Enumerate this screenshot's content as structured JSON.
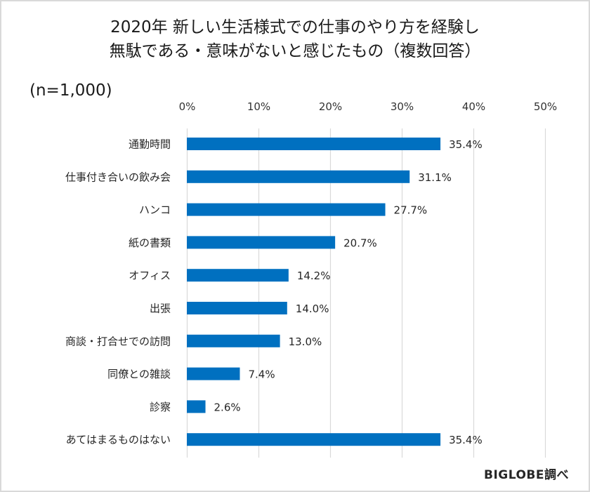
{
  "chart_data": {
    "type": "bar",
    "orientation": "horizontal",
    "title_lines": [
      "2020年 新しい生活様式での仕事のやり方を経験し",
      "無駄である・意味がないと感じたもの（複数回答）"
    ],
    "sample_note": "(n=1,000)",
    "source": "BIGLOBE調べ",
    "categories": [
      "通勤時間",
      "仕事付き合いの飲み会",
      "ハンコ",
      "紙の書類",
      "オフィス",
      "出張",
      "商談・打合せでの訪問",
      "同僚との雑談",
      "診察",
      "あてはまるものはない"
    ],
    "values": [
      35.4,
      31.1,
      27.7,
      20.7,
      14.2,
      14.0,
      13.0,
      7.4,
      2.6,
      35.4
    ],
    "value_labels": [
      "35.4%",
      "31.1%",
      "27.7%",
      "20.7%",
      "14.2%",
      "14.0%",
      "13.0%",
      "7.4%",
      "2.6%",
      "35.4%"
    ],
    "xlim": [
      0,
      50
    ],
    "x_ticks": [
      0,
      10,
      20,
      30,
      40,
      50
    ],
    "x_tick_labels": [
      "0%",
      "10%",
      "20%",
      "30%",
      "40%",
      "50%"
    ],
    "x_axis_position": "top",
    "grid": true,
    "legend": "none",
    "bar_color": "#0070c0",
    "xlabel": "",
    "ylabel": ""
  }
}
